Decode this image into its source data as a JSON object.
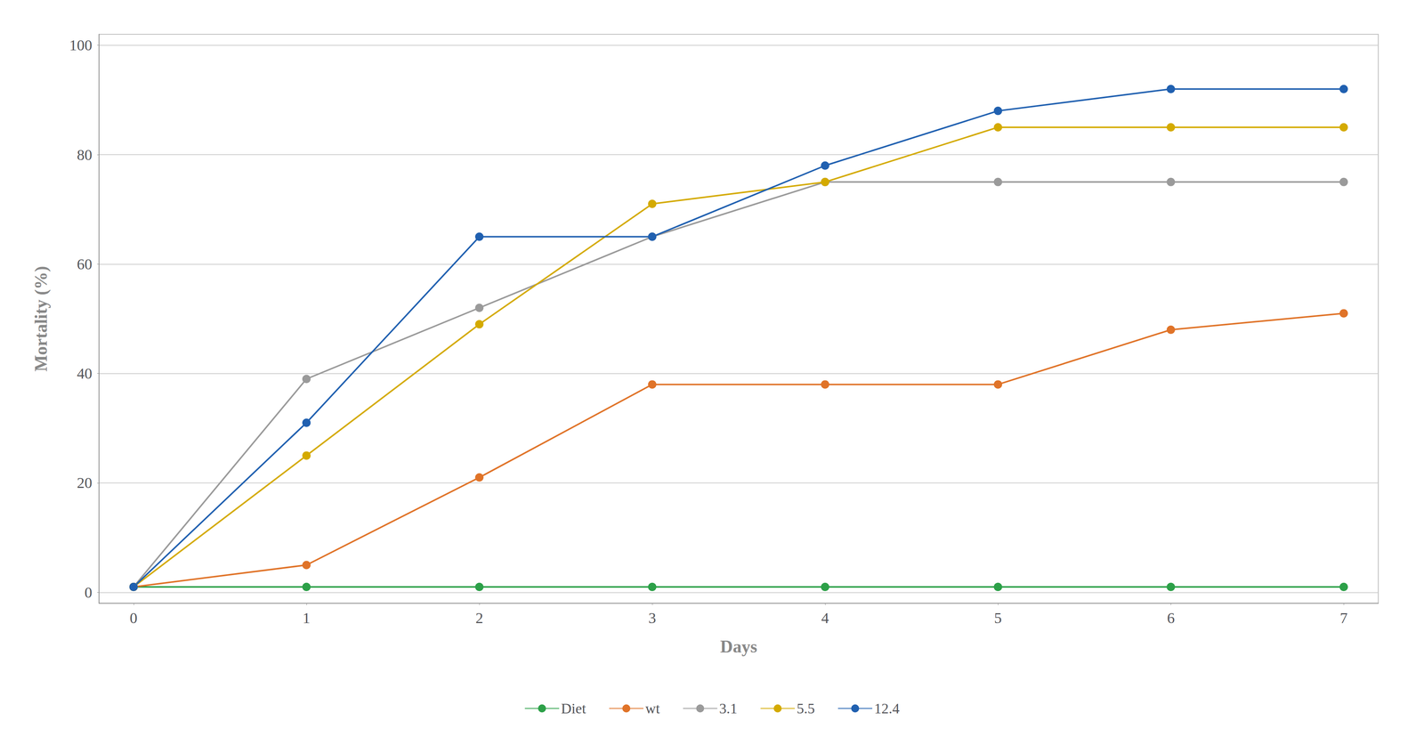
{
  "chart_data": {
    "type": "line",
    "x": [
      0,
      1,
      2,
      3,
      4,
      5,
      6,
      7
    ],
    "series": [
      {
        "name": "Diet",
        "color": "#2ca048",
        "values": [
          1,
          1,
          1,
          1,
          1,
          1,
          1,
          1
        ]
      },
      {
        "name": "wt",
        "color": "#e07328",
        "values": [
          1,
          5,
          21,
          38,
          38,
          38,
          48,
          51
        ]
      },
      {
        "name": "3.1",
        "color": "#9a9a9a",
        "values": [
          1,
          39,
          52,
          65,
          75,
          75,
          75,
          75
        ]
      },
      {
        "name": "5.5",
        "color": "#d4aa00",
        "values": [
          1,
          25,
          49,
          71,
          75,
          85,
          85,
          85
        ]
      },
      {
        "name": "12.4",
        "color": "#2060b0",
        "values": [
          1,
          31,
          65,
          65,
          78,
          88,
          92,
          92
        ]
      }
    ],
    "xlabel": "Days",
    "ylabel": "Mortality (%)",
    "xlim": [
      -0.2,
      7.2
    ],
    "ylim": [
      -2,
      102
    ],
    "xticks": [
      0,
      1,
      2,
      3,
      4,
      5,
      6,
      7
    ],
    "yticks": [
      0,
      20,
      40,
      60,
      80,
      100
    ],
    "grid": true,
    "legend": "bottom",
    "marker": "circle"
  }
}
